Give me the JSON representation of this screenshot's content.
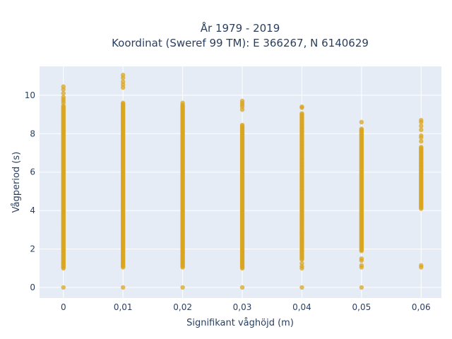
{
  "chart_data": {
    "type": "scatter",
    "title": [
      "År 1979 - 2019",
      "Koordinat (Sweref 99 TM): E 366267, N 6140629"
    ],
    "xlabel": "Signifikant våghöjd (m)",
    "ylabel": "Vågperiod (s)",
    "xlim": [
      -0.004,
      0.0634
    ],
    "ylim": [
      -0.55,
      11.5
    ],
    "x_ticks": [
      0,
      0.01,
      0.02,
      0.03,
      0.04,
      0.05,
      0.06
    ],
    "x_tick_labels": [
      "0",
      "0,01",
      "0,02",
      "0,03",
      "0,04",
      "0,05",
      "0,06"
    ],
    "y_ticks": [
      0,
      2,
      4,
      6,
      8,
      10
    ],
    "y_tick_labels": [
      "0",
      "2",
      "4",
      "6",
      "8",
      "10"
    ],
    "grid": true,
    "background_color": "#e5ecf6",
    "marker_color": "#daa520",
    "columns": [
      {
        "x": 0.0,
        "dense_range": [
          1.0,
          9.45
        ],
        "outliers": [
          0,
          9.6,
          9.7,
          9.8,
          9.9,
          10.1,
          10.3,
          10.45
        ]
      },
      {
        "x": 0.01,
        "dense_range": [
          1.05,
          9.6
        ],
        "outliers": [
          0,
          10.4,
          10.55,
          10.7,
          10.9,
          11.05
        ]
      },
      {
        "x": 0.02,
        "dense_range": [
          1.05,
          9.5
        ],
        "outliers": [
          0,
          9.6
        ]
      },
      {
        "x": 0.03,
        "dense_range": [
          1.0,
          8.45
        ],
        "outliers": [
          0,
          9.25,
          9.4,
          9.5,
          9.6,
          9.7
        ]
      },
      {
        "x": 0.04,
        "dense_range": [
          1.45,
          9.05
        ],
        "outliers": [
          0,
          1.0,
          1.1,
          1.25,
          9.35,
          9.4
        ]
      },
      {
        "x": 0.05,
        "dense_range": [
          1.9,
          8.25
        ],
        "outliers": [
          0,
          1.05,
          1.15,
          1.4,
          1.5,
          8.6
        ]
      },
      {
        "x": 0.06,
        "dense_range": [
          4.1,
          7.3
        ],
        "outliers": [
          1.05,
          1.15,
          7.6,
          7.8,
          7.9,
          8.2,
          8.4,
          8.6,
          8.7
        ]
      }
    ]
  }
}
